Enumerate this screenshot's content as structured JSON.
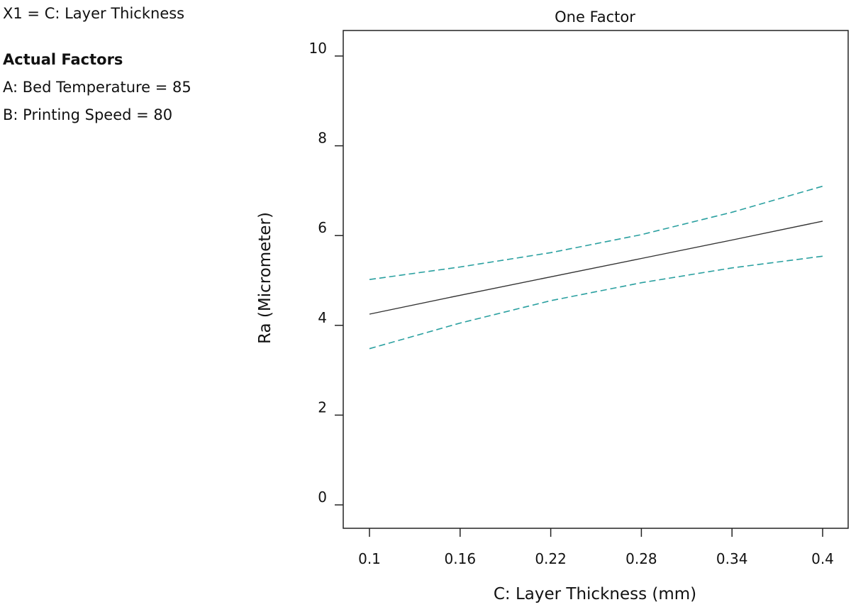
{
  "factor_info": {
    "x1_label": "X1 = C: Layer Thickness",
    "actual_factors_heading": "Actual Factors",
    "factors": [
      "A: Bed Temperature = 85",
      "B: Printing Speed = 80"
    ]
  },
  "chart_data": {
    "type": "line",
    "title": "One Factor",
    "xlabel": "C: Layer Thickness (mm)",
    "ylabel": "Ra (Micrometer)",
    "xlim": [
      0.1,
      0.4
    ],
    "ylim": [
      0,
      10
    ],
    "x_ticks": [
      "0.1",
      "0.16",
      "0.22",
      "0.28",
      "0.34",
      "0.4"
    ],
    "y_ticks": [
      "0",
      "2",
      "4",
      "6",
      "8",
      "10"
    ],
    "grid": false,
    "series": [
      {
        "style": "solid",
        "color": "#333333",
        "x": [
          0.1,
          0.16,
          0.22,
          0.28,
          0.34,
          0.4
        ],
        "y": [
          4.25,
          4.67,
          5.08,
          5.49,
          5.9,
          6.32
        ]
      },
      {
        "style": "dashed",
        "color": "#2aa0a0",
        "x": [
          0.1,
          0.16,
          0.22,
          0.28,
          0.34,
          0.4
        ],
        "y": [
          5.02,
          5.3,
          5.62,
          6.02,
          6.52,
          7.1
        ]
      },
      {
        "style": "dashed",
        "color": "#2aa0a0",
        "x": [
          0.1,
          0.16,
          0.22,
          0.28,
          0.34,
          0.4
        ],
        "y": [
          3.48,
          4.05,
          4.55,
          4.95,
          5.28,
          5.54
        ]
      }
    ]
  }
}
